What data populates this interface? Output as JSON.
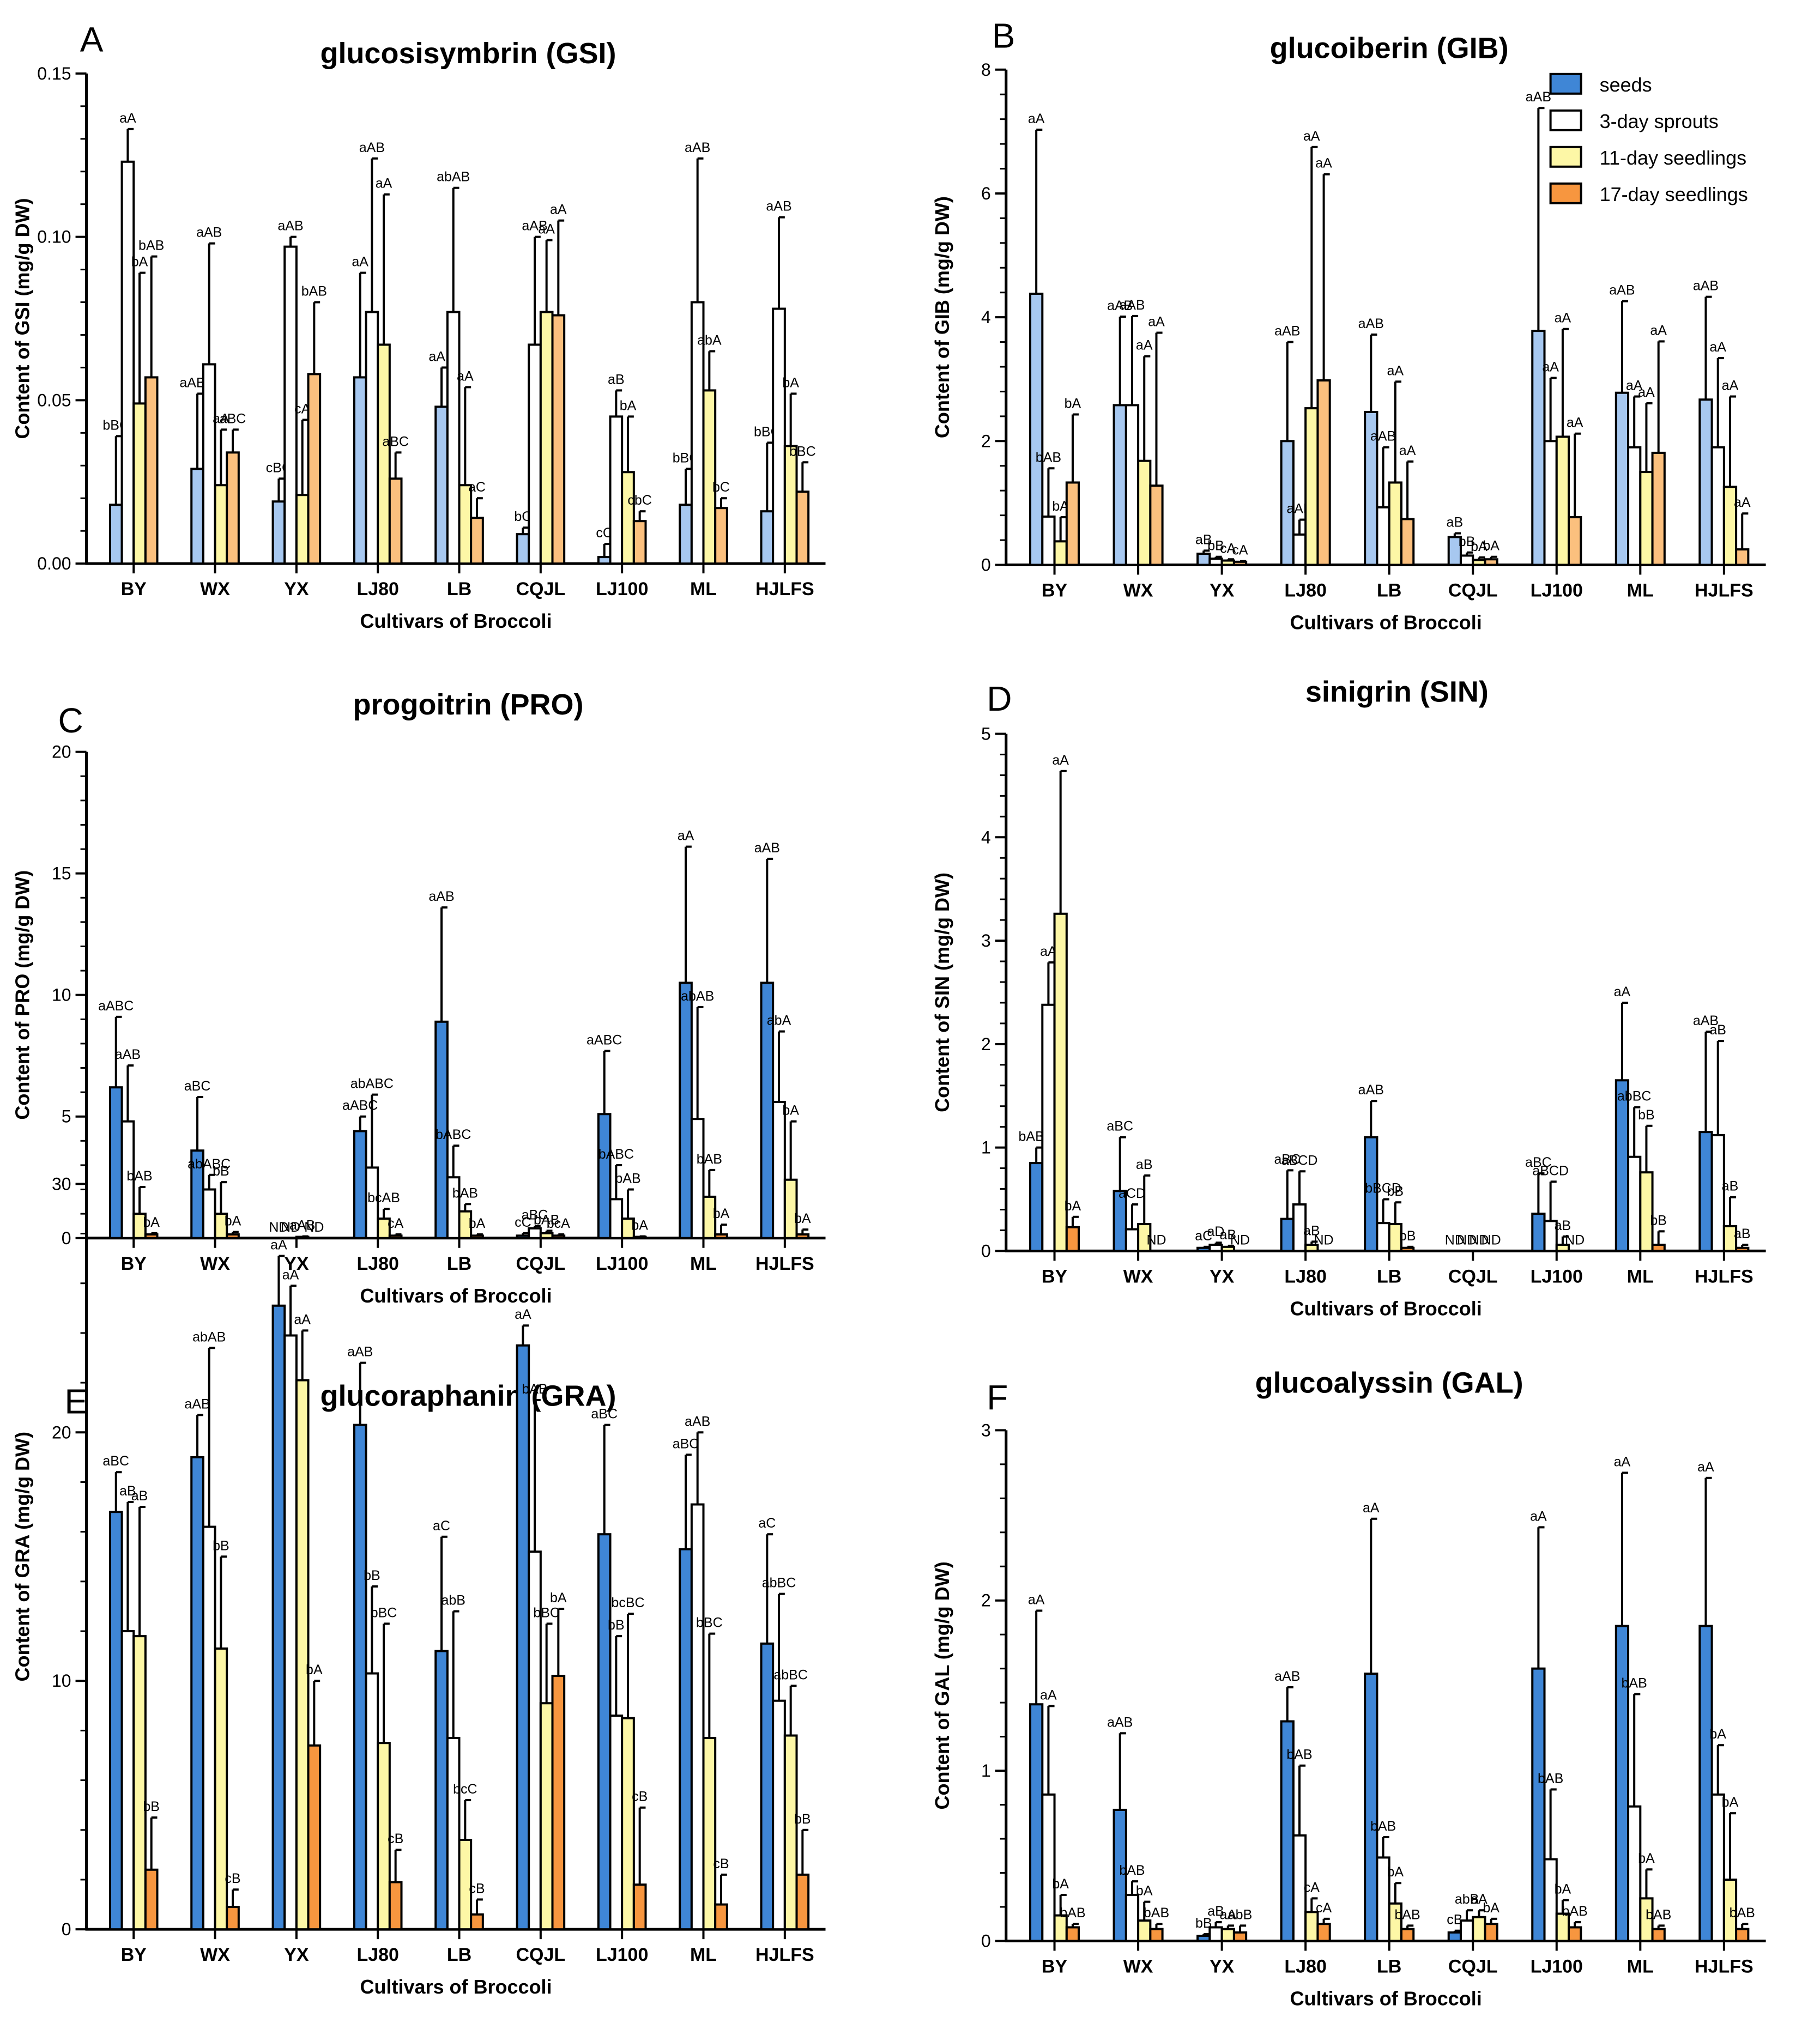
{
  "figure": {
    "xlabel": "Cultivars of Broccoli",
    "categories": [
      "BY",
      "WX",
      "YX",
      "LJ80",
      "LB",
      "CQJL",
      "LJ100",
      "ML",
      "HJLFS"
    ],
    "series_names": [
      "seeds",
      "3-day sprouts",
      "11-day seedlings",
      "17-day seedlings"
    ],
    "nd_text": "ND",
    "colors": {
      "seeds": "#3f86d6",
      "sprouts_3day": "#ffffff",
      "seedlings_11day": "#fdf7a6",
      "seedlings_17day": "#f7963f",
      "axis": "#000000"
    }
  },
  "chart_data": [
    {
      "panel": "A",
      "type": "bar",
      "title": "glucosisymbrin (GSI)",
      "ylabel": "Content of  GSI (mg/g DW)",
      "xlabel": "Cultivars of Broccoli",
      "ylim": [
        0,
        0.15
      ],
      "yticks": [
        "0.00",
        "0.05",
        "0.10",
        "0.15"
      ],
      "ytick_values": [
        0,
        0.05,
        0.1,
        0.15
      ],
      "shade": "light",
      "legend": "none",
      "series": [
        {
          "name": "seeds",
          "values": [
            0.018,
            0.029,
            0.019,
            0.057,
            0.048,
            0.009,
            0.002,
            0.018,
            0.016
          ],
          "errors": [
            0.021,
            0.023,
            0.007,
            0.032,
            0.012,
            0.002,
            0.004,
            0.011,
            0.021
          ],
          "labels": [
            "bBC",
            "aABC",
            "cBC",
            "aA",
            "aAB",
            "bC",
            "cC",
            "bBC",
            "bBC"
          ]
        },
        {
          "name": "3-day sprouts",
          "values": [
            0.123,
            0.061,
            0.097,
            0.077,
            0.077,
            0.067,
            0.045,
            0.08,
            0.078
          ],
          "errors": [
            0.01,
            0.037,
            0.003,
            0.047,
            0.038,
            0.033,
            0.008,
            0.044,
            0.028
          ],
          "labels": [
            "aA",
            "aAB",
            "aAB",
            "aAB",
            "abAB",
            "aAB",
            "aB",
            "aAB",
            "aAB"
          ]
        },
        {
          "name": "11-day seedlings",
          "values": [
            0.049,
            0.024,
            0.021,
            0.067,
            0.024,
            0.077,
            0.028,
            0.053,
            0.036
          ],
          "errors": [
            0.04,
            0.017,
            0.023,
            0.046,
            0.03,
            0.022,
            0.017,
            0.012,
            0.016
          ],
          "labels": [
            "bA",
            "aA",
            "cA",
            "aA",
            "aA",
            "aA",
            "bA",
            "abA",
            "bA"
          ]
        },
        {
          "name": "17-day seedlings",
          "values": [
            0.057,
            0.034,
            0.058,
            0.026,
            0.014,
            0.076,
            0.013,
            0.017,
            0.022
          ],
          "errors": [
            0.037,
            0.007,
            0.022,
            0.008,
            0.006,
            0.029,
            0.003,
            0.003,
            0.009
          ],
          "labels": [
            "bAB",
            "aBC",
            "bAB",
            "aBC",
            "aC",
            "aA",
            "cbC",
            "bC",
            "bBC"
          ]
        }
      ]
    },
    {
      "panel": "B",
      "type": "bar",
      "title": "glucoiberin (GIB)",
      "ylabel": "Content of  GIB (mg/g DW)",
      "xlabel": "Cultivars of Broccoli",
      "ylim": [
        0,
        8
      ],
      "yticks": [
        "0",
        "2",
        "4",
        "6",
        "8"
      ],
      "ytick_values": [
        0,
        2,
        4,
        6,
        8
      ],
      "shade": "light",
      "legend": "top-right",
      "series": [
        {
          "name": "seeds",
          "values": [
            4.38,
            2.58,
            0.18,
            2.0,
            2.47,
            0.45,
            3.78,
            2.78,
            2.67
          ],
          "errors": [
            2.65,
            1.43,
            0.05,
            1.6,
            1.25,
            0.06,
            3.6,
            1.48,
            1.66
          ],
          "labels": [
            "aA",
            "aAB",
            "aB",
            "aAB",
            "aAB",
            "aB",
            "aAB",
            "aAB",
            "aAB"
          ]
        },
        {
          "name": "3-day sprouts",
          "values": [
            0.78,
            2.58,
            0.1,
            0.49,
            0.93,
            0.15,
            2.0,
            1.9,
            1.9
          ],
          "errors": [
            0.78,
            1.44,
            0.03,
            0.24,
            0.97,
            0.05,
            1.02,
            0.82,
            1.44
          ],
          "labels": [
            "bAB",
            "aAB",
            "bB",
            "aAB",
            "aAB",
            "bB",
            "aA",
            "aA",
            "aA"
          ]
        },
        {
          "name": "11-day seedlings",
          "values": [
            0.38,
            1.68,
            0.07,
            2.53,
            1.33,
            0.08,
            2.07,
            1.5,
            1.26
          ],
          "errors": [
            0.39,
            1.69,
            0.02,
            4.22,
            1.63,
            0.04,
            1.74,
            1.11,
            1.46
          ],
          "labels": [
            "bA",
            "aA",
            "cA",
            "aA",
            "aA",
            "bA",
            "aA",
            "aA",
            "aA"
          ]
        },
        {
          "name": "17-day seedlings",
          "values": [
            1.33,
            1.28,
            0.05,
            2.98,
            0.74,
            0.09,
            0.77,
            1.81,
            0.25
          ],
          "errors": [
            1.1,
            2.47,
            0.01,
            3.33,
            0.93,
            0.04,
            1.35,
            1.8,
            0.58
          ],
          "labels": [
            "bA",
            "aA",
            "cA",
            "aA",
            "aA",
            "bA",
            "aA",
            "aA",
            "aA"
          ]
        }
      ]
    },
    {
      "panel": "C",
      "type": "bar",
      "title": "progoitrin (PRO)",
      "ylabel": "Content of  PRO (mg/g DW)",
      "xlabel": "Cultivars of Broccoli",
      "ylim": [
        0,
        20
      ],
      "yticks": [
        "0",
        "5",
        "10",
        "15",
        "20"
      ],
      "ytick_values": [
        0,
        5,
        10,
        15,
        20
      ],
      "shade": "full",
      "legend": "none",
      "series": [
        {
          "name": "seeds",
          "values": [
            6.2,
            3.6,
            null,
            4.4,
            8.9,
            0.1,
            5.1,
            10.5,
            10.5
          ],
          "errors": [
            2.9,
            2.2,
            null,
            0.6,
            4.7,
            0.1,
            2.6,
            5.6,
            5.1
          ],
          "labels": [
            "aABC",
            "aBC",
            "ND",
            "aABC",
            "aAB",
            "cC",
            "aABC",
            "aA",
            "aAB"
          ]
        },
        {
          "name": "3-day sprouts",
          "values": [
            4.8,
            2.0,
            null,
            2.9,
            2.5,
            0.4,
            1.6,
            4.9,
            5.6
          ],
          "errors": [
            2.3,
            0.6,
            null,
            3.0,
            1.3,
            0.1,
            1.4,
            4.6,
            2.9
          ],
          "labels": [
            "aAB",
            "abABC",
            "ND",
            "abABC",
            "bABC",
            "aBC",
            "bABC",
            "abAB",
            "abA"
          ]
        },
        {
          "name": "11-day seedlings",
          "values": [
            1.0,
            1.0,
            0.05,
            0.8,
            1.1,
            0.2,
            0.8,
            1.7,
            2.4
          ],
          "errors": [
            1.1,
            1.3,
            0.02,
            0.4,
            0.3,
            0.1,
            1.2,
            1.1,
            2.4
          ],
          "labels": [
            "bAB",
            "bB",
            "aAB",
            "bcAB",
            "bAB",
            "bAB",
            "bAB",
            "bAB",
            "bA"
          ]
        },
        {
          "name": "17-day seedlings",
          "values": [
            0.15,
            0.15,
            null,
            0.1,
            0.1,
            0.1,
            0.05,
            0.15,
            0.15
          ],
          "errors": [
            0.05,
            0.1,
            null,
            0.05,
            0.05,
            0.05,
            0.02,
            0.4,
            0.2
          ],
          "labels": [
            "bA",
            "bA",
            "ND",
            "cA",
            "bA",
            "bcA",
            "bA",
            "bA",
            "bA"
          ]
        }
      ]
    },
    {
      "panel": "D",
      "type": "bar",
      "title": "sinigrin (SIN)",
      "ylabel": "Content of  SIN (mg/g DW)",
      "xlabel": "Cultivars of Broccoli",
      "ylim": [
        0,
        5
      ],
      "yticks": [
        "0",
        "1",
        "2",
        "3",
        "4",
        "5"
      ],
      "ytick_values": [
        0,
        1,
        2,
        3,
        4,
        5
      ],
      "shade": "full",
      "legend": "none",
      "series": [
        {
          "name": "seeds",
          "values": [
            0.85,
            0.58,
            0.03,
            0.31,
            1.1,
            null,
            0.36,
            1.65,
            1.15
          ],
          "errors": [
            0.15,
            0.52,
            0.01,
            0.47,
            0.35,
            null,
            0.39,
            0.75,
            0.97
          ],
          "labels": [
            "bABC",
            "aBC",
            "aC",
            "aBC",
            "aAB",
            "ND",
            "aBC",
            "aA",
            "aAB"
          ]
        },
        {
          "name": "3-day sprouts",
          "values": [
            2.38,
            0.21,
            0.06,
            0.45,
            0.27,
            null,
            0.29,
            0.91,
            1.12
          ],
          "errors": [
            0.41,
            0.24,
            0.02,
            0.32,
            0.23,
            null,
            0.38,
            0.48,
            0.91
          ],
          "labels": [
            "aA",
            "aCD",
            "aD",
            "aBCD",
            "bBCD",
            "ND",
            "aBCD",
            "abBC",
            "aB"
          ]
        },
        {
          "name": "11-day seedlings",
          "values": [
            3.26,
            0.26,
            0.04,
            0.06,
            0.26,
            null,
            0.06,
            0.76,
            0.24
          ],
          "errors": [
            1.38,
            0.47,
            0.01,
            0.03,
            0.21,
            null,
            0.08,
            0.45,
            0.28
          ],
          "labels": [
            "aA",
            "aB",
            "aB",
            "aB",
            "bB",
            "ND",
            "aB",
            "bB",
            "aB"
          ]
        },
        {
          "name": "17-day seedlings",
          "values": [
            0.23,
            null,
            null,
            null,
            0.03,
            null,
            null,
            0.06,
            0.03
          ],
          "errors": [
            0.1,
            null,
            null,
            null,
            0.01,
            null,
            null,
            0.13,
            0.03
          ],
          "labels": [
            "bA",
            "ND",
            "ND",
            "ND",
            "bB",
            "ND",
            "ND",
            "bB",
            "aB"
          ]
        }
      ]
    },
    {
      "panel": "E",
      "type": "bar",
      "title": "glucoraphanin (GRA)",
      "ylabel": "Content of GRA (mg/g DW)",
      "xlabel": "Cultivars of Broccoli",
      "ylim": [
        0,
        30
      ],
      "yticks": [
        "0",
        "10",
        "20",
        "30"
      ],
      "ytick_values": [
        0,
        10,
        20,
        30
      ],
      "shade": "full",
      "legend": "none",
      "series": [
        {
          "name": "seeds",
          "values": [
            16.8,
            19.0,
            25.1,
            20.3,
            11.2,
            23.5,
            15.9,
            15.3,
            11.5
          ],
          "errors": [
            1.6,
            1.7,
            2.0,
            2.5,
            4.6,
            0.8,
            4.4,
            3.8,
            4.4
          ],
          "labels": [
            "aBC",
            "aAB",
            "aA",
            "aAB",
            "aC",
            "aA",
            "aBC",
            "aBC",
            "aC"
          ]
        },
        {
          "name": "3-day sprouts",
          "values": [
            12.0,
            16.2,
            23.9,
            10.3,
            7.7,
            15.2,
            8.6,
            17.1,
            9.2
          ],
          "errors": [
            5.2,
            7.2,
            2.0,
            3.5,
            5.1,
            6.1,
            3.2,
            2.9,
            4.3
          ],
          "labels": [
            "aB",
            "abAB",
            "aA",
            "bB",
            "abB",
            "bAB",
            "bB",
            "aAB",
            "abBC"
          ]
        },
        {
          "name": "11-day seedlings",
          "values": [
            11.8,
            11.3,
            22.1,
            7.5,
            3.6,
            9.1,
            8.5,
            7.7,
            7.8
          ],
          "errors": [
            5.2,
            3.7,
            2.0,
            4.8,
            1.6,
            3.2,
            4.2,
            4.2,
            2.0
          ],
          "labels": [
            "aB",
            "bB",
            "aA",
            "bBC",
            "bcC",
            "bBC",
            "bcBC",
            "bBC",
            "abBC"
          ]
        },
        {
          "name": "17-day seedlings",
          "values": [
            2.4,
            0.9,
            7.4,
            1.9,
            0.6,
            10.2,
            1.8,
            1.0,
            2.2
          ],
          "errors": [
            2.1,
            0.7,
            2.6,
            1.3,
            0.6,
            2.7,
            3.1,
            1.2,
            1.8
          ],
          "labels": [
            "bB",
            "cB",
            "bA",
            "cB",
            "cB",
            "bA",
            "cB",
            "cB",
            "bB"
          ]
        }
      ]
    },
    {
      "panel": "F",
      "type": "bar",
      "title": "glucoalyssin (GAL)",
      "ylabel": "Content of  GAL (mg/g DW)",
      "xlabel": "Cultivars of Broccoli",
      "ylim": [
        0,
        3
      ],
      "yticks": [
        "0",
        "1",
        "2",
        "3"
      ],
      "ytick_values": [
        0,
        1,
        2,
        3
      ],
      "shade": "full",
      "legend": "none",
      "series": [
        {
          "name": "seeds",
          "values": [
            1.39,
            0.77,
            0.03,
            1.29,
            1.57,
            0.05,
            1.6,
            1.85,
            1.85
          ],
          "errors": [
            0.55,
            0.45,
            0.01,
            0.2,
            0.91,
            0.01,
            0.83,
            0.9,
            0.87
          ],
          "labels": [
            "aA",
            "aAB",
            "bB",
            "aAB",
            "aA",
            "cB",
            "aA",
            "aA",
            "aA"
          ]
        },
        {
          "name": "3-day sprouts",
          "values": [
            0.86,
            0.27,
            0.08,
            0.62,
            0.49,
            0.12,
            0.48,
            0.79,
            0.86
          ],
          "errors": [
            0.52,
            0.08,
            0.03,
            0.41,
            0.12,
            0.06,
            0.41,
            0.66,
            0.29
          ],
          "labels": [
            "aA",
            "bAB",
            "aB",
            "bAB",
            "bAB",
            "abB",
            "bAB",
            "bAB",
            "bA"
          ]
        },
        {
          "name": "11-day seedlings",
          "values": [
            0.15,
            0.12,
            0.07,
            0.17,
            0.22,
            0.14,
            0.16,
            0.25,
            0.36
          ],
          "errors": [
            0.12,
            0.11,
            0.02,
            0.08,
            0.12,
            0.04,
            0.08,
            0.17,
            0.39
          ],
          "labels": [
            "bA",
            "bA",
            "aA",
            "cA",
            "bA",
            "aA",
            "bA",
            "bA",
            "bA"
          ]
        },
        {
          "name": "17-day seedlings",
          "values": [
            0.08,
            0.07,
            0.05,
            0.1,
            0.07,
            0.1,
            0.08,
            0.07,
            0.07
          ],
          "errors": [
            0.02,
            0.03,
            0.04,
            0.03,
            0.02,
            0.03,
            0.03,
            0.02,
            0.03
          ],
          "labels": [
            "bAB",
            "bAB",
            "abB",
            "cA",
            "bAB",
            "bA",
            "bAB",
            "bAB",
            "bAB"
          ]
        }
      ]
    }
  ]
}
